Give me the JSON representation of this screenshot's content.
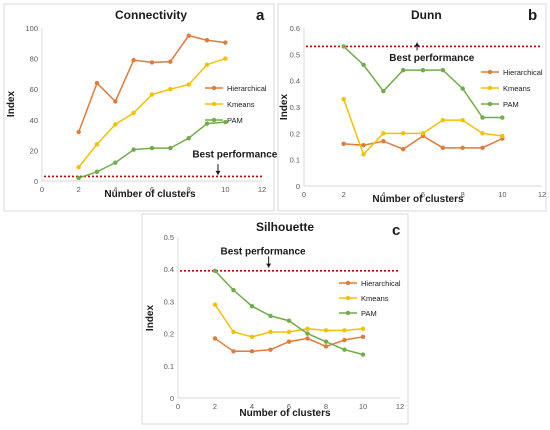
{
  "chart_data": [
    {
      "type": "line",
      "panel_label": "a",
      "title": "Connectivity",
      "xlabel": "Number of clusters",
      "ylabel": "Index",
      "xlim": [
        0,
        12
      ],
      "ylim": [
        0,
        100
      ],
      "x_ticks": [
        0,
        2,
        4,
        6,
        8,
        10,
        12
      ],
      "y_ticks": [
        0,
        20,
        40,
        60,
        80,
        100
      ],
      "x": [
        2,
        3,
        4,
        5,
        6,
        7,
        8,
        9,
        10
      ],
      "series": [
        {
          "name": "Hierarchical",
          "color": "#e07b39",
          "values": [
            32,
            64,
            52,
            79,
            77.5,
            78,
            95,
            92,
            90.5
          ]
        },
        {
          "name": "Kmeans",
          "color": "#f5c000",
          "values": [
            9,
            24,
            37,
            44.5,
            56.5,
            60,
            63,
            76,
            80
          ]
        },
        {
          "name": "PAM",
          "color": "#70ad47",
          "values": [
            2,
            6,
            12,
            20.5,
            21.5,
            21.5,
            28,
            37.5,
            38.5
          ]
        }
      ],
      "legend": "right",
      "best_line": {
        "value": 3,
        "color": "#c00000"
      },
      "annotation": {
        "text": "Best performance",
        "x": 8.2,
        "y": 15.5,
        "arrow_x": 9.6,
        "arrow_from": 11,
        "arrow_to": 4
      }
    },
    {
      "type": "line",
      "panel_label": "b",
      "title": "Dunn",
      "xlabel": "Number of clusters",
      "ylabel": "Index",
      "xlim": [
        0,
        12
      ],
      "ylim": [
        0,
        0.6
      ],
      "x_ticks": [
        0,
        2,
        4,
        6,
        8,
        10,
        12
      ],
      "y_ticks": [
        0,
        0.1,
        0.2,
        0.3,
        0.4,
        0.5,
        0.6
      ],
      "y_tick_labels": [
        "0",
        "0.1",
        "0.2",
        "0.3",
        "0.4",
        "0.5",
        "0.6"
      ],
      "x": [
        2,
        3,
        4,
        5,
        6,
        7,
        8,
        9,
        10
      ],
      "series": [
        {
          "name": "Hierarchical",
          "color": "#e07b39",
          "values": [
            0.16,
            0.155,
            0.17,
            0.14,
            0.19,
            0.145,
            0.145,
            0.145,
            0.18
          ]
        },
        {
          "name": "Kmeans",
          "color": "#f5c000",
          "values": [
            0.33,
            0.12,
            0.2,
            0.2,
            0.2,
            0.25,
            0.25,
            0.2,
            0.19
          ]
        },
        {
          "name": "PAM",
          "color": "#70ad47",
          "values": [
            0.53,
            0.46,
            0.36,
            0.44,
            0.44,
            0.44,
            0.37,
            0.26,
            0.26
          ]
        }
      ],
      "legend": "right",
      "best_line": {
        "value": 0.53,
        "color": "#c00000"
      },
      "annotation": {
        "text": "Best performance",
        "x": 4.3,
        "y": 0.475,
        "arrow_x": 5.7,
        "arrow_from": 0.515,
        "arrow_to": 0.545
      }
    },
    {
      "type": "line",
      "panel_label": "c",
      "title": "Silhouette",
      "xlabel": "Number of clusters",
      "ylabel": "Index",
      "xlim": [
        0,
        12
      ],
      "ylim": [
        0,
        0.5
      ],
      "x_ticks": [
        0,
        2,
        4,
        6,
        8,
        10,
        12
      ],
      "y_ticks": [
        0,
        0.1,
        0.2,
        0.3,
        0.4,
        0.5
      ],
      "y_tick_labels": [
        "0",
        "0.1",
        "0.2",
        "0.3",
        "0.4",
        "0.5"
      ],
      "x": [
        2,
        3,
        4,
        5,
        6,
        7,
        8,
        9,
        10
      ],
      "series": [
        {
          "name": "Hierarchical",
          "color": "#e07b39",
          "values": [
            0.185,
            0.145,
            0.145,
            0.15,
            0.175,
            0.185,
            0.16,
            0.18,
            0.19
          ]
        },
        {
          "name": "Kmeans",
          "color": "#f5c000",
          "values": [
            0.29,
            0.205,
            0.19,
            0.205,
            0.205,
            0.215,
            0.21,
            0.21,
            0.215
          ]
        },
        {
          "name": "PAM",
          "color": "#70ad47",
          "values": [
            0.395,
            0.335,
            0.285,
            0.255,
            0.24,
            0.2,
            0.175,
            0.15,
            0.135
          ]
        }
      ],
      "legend": "right",
      "best_line": {
        "value": 0.395,
        "color": "#c00000"
      },
      "annotation": {
        "text": "Best performance",
        "x": 2.3,
        "y": 0.445,
        "arrow_x": 4.9,
        "arrow_from": 0.44,
        "arrow_to": 0.405
      }
    }
  ]
}
